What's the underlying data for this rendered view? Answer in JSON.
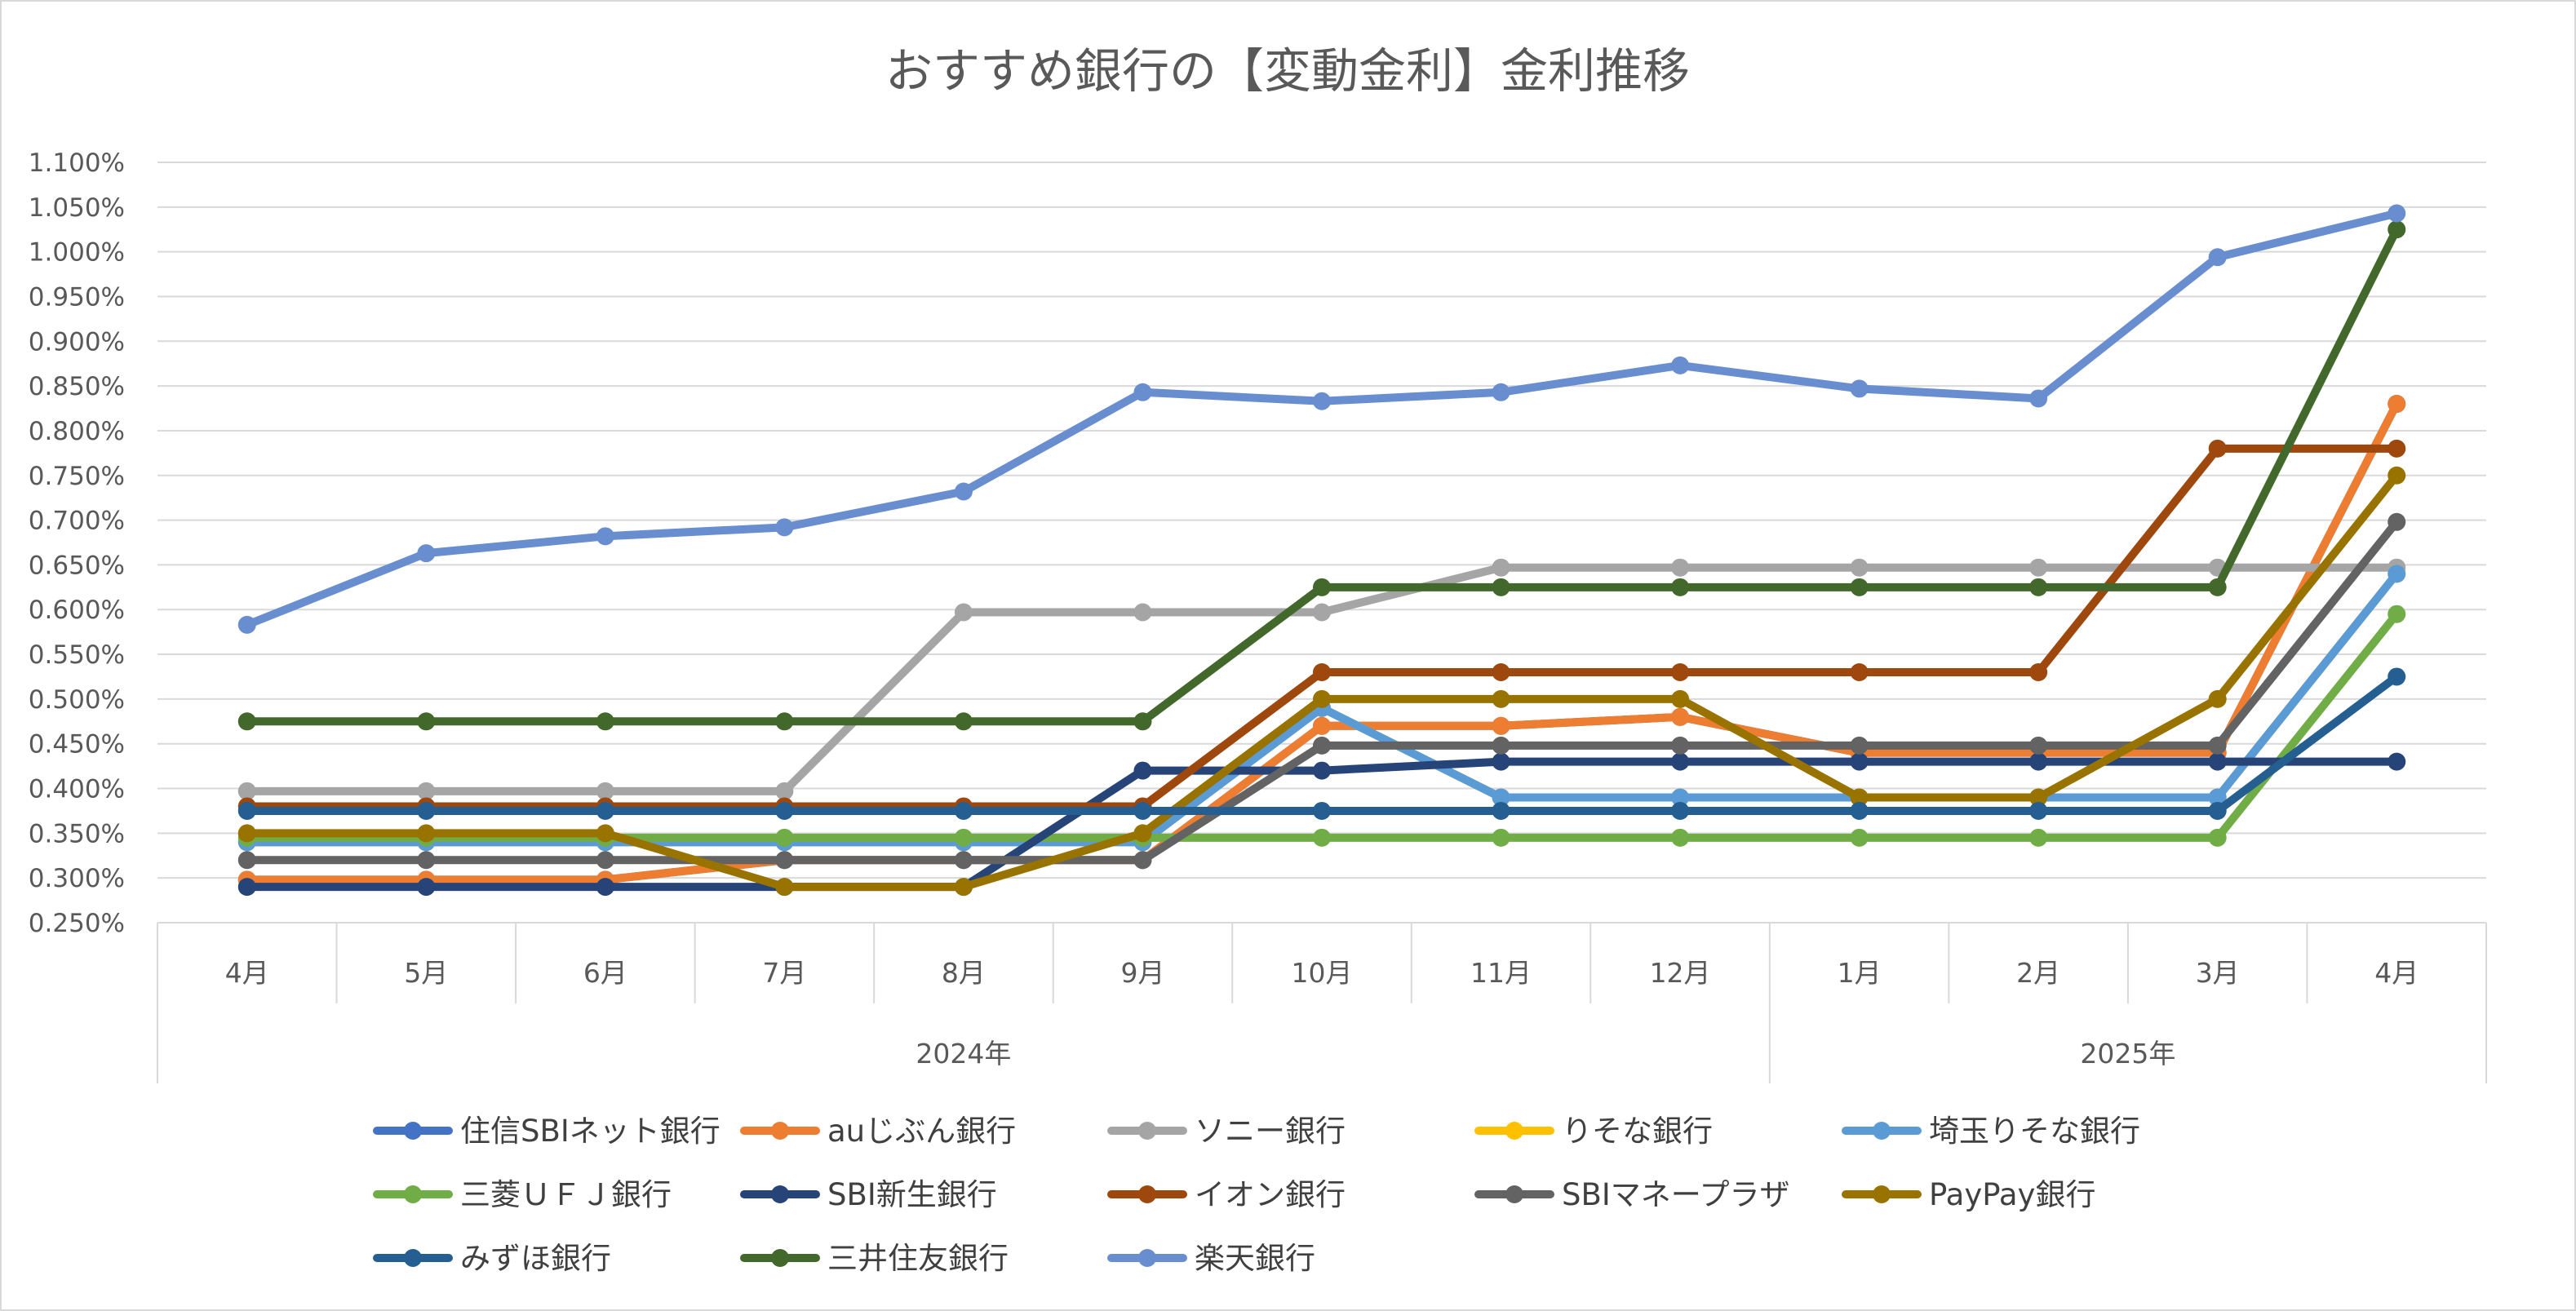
{
  "chart_data": {
    "type": "line",
    "title": "おすすめ銀行の【変動金利】金利推移",
    "ylim": [
      0.25,
      1.1
    ],
    "y_ticks": [
      "1.100%",
      "1.050%",
      "1.000%",
      "0.950%",
      "0.900%",
      "0.850%",
      "0.800%",
      "0.750%",
      "0.700%",
      "0.650%",
      "0.600%",
      "0.550%",
      "0.500%",
      "0.450%",
      "0.400%",
      "0.350%",
      "0.300%",
      "0.250%"
    ],
    "categories": [
      "4月",
      "5月",
      "6月",
      "7月",
      "8月",
      "9月",
      "10月",
      "11月",
      "12月",
      "1月",
      "2月",
      "3月",
      "4月"
    ],
    "year_groups": [
      {
        "label": "2024年",
        "count": 9
      },
      {
        "label": "2025年",
        "count": 4
      }
    ],
    "grid": true,
    "legend_position": "bottom",
    "series": [
      {
        "name": "住信SBIネット銀行",
        "color": "#4472C4",
        "values": [
          0.298,
          0.298,
          0.298,
          0.32,
          0.32,
          0.32,
          0.47,
          0.47,
          0.48,
          0.44,
          0.44,
          0.44,
          0.83
        ]
      },
      {
        "name": "auじぶん銀行",
        "color": "#ED7D31",
        "values": [
          0.298,
          0.298,
          0.298,
          0.32,
          0.32,
          0.32,
          0.47,
          0.47,
          0.48,
          0.44,
          0.44,
          0.44,
          0.83
        ]
      },
      {
        "name": "ソニー銀行",
        "color": "#A5A5A5",
        "values": [
          0.397,
          0.397,
          0.397,
          0.397,
          0.597,
          0.597,
          0.597,
          0.647,
          0.647,
          0.647,
          0.647,
          0.647,
          0.647
        ]
      },
      {
        "name": "りそな銀行",
        "color": "#FFC000",
        "values": [
          0.34,
          0.34,
          0.34,
          0.34,
          0.34,
          0.34,
          0.49,
          0.39,
          0.39,
          0.39,
          0.39,
          0.39,
          0.64
        ]
      },
      {
        "name": "埼玉りそな銀行",
        "color": "#5B9BD5",
        "values": [
          0.34,
          0.34,
          0.34,
          0.34,
          0.34,
          0.34,
          0.49,
          0.39,
          0.39,
          0.39,
          0.39,
          0.39,
          0.64
        ]
      },
      {
        "name": "三菱ＵＦＪ銀行",
        "color": "#70AD47",
        "values": [
          0.345,
          0.345,
          0.345,
          0.345,
          0.345,
          0.345,
          0.345,
          0.345,
          0.345,
          0.345,
          0.345,
          0.345,
          0.595
        ]
      },
      {
        "name": "SBI新生銀行",
        "color": "#264478",
        "values": [
          0.29,
          0.29,
          0.29,
          0.29,
          0.29,
          0.42,
          0.42,
          0.43,
          0.43,
          0.43,
          0.43,
          0.43,
          0.43
        ]
      },
      {
        "name": "イオン銀行",
        "color": "#9E480E",
        "values": [
          0.38,
          0.38,
          0.38,
          0.38,
          0.38,
          0.38,
          0.53,
          0.53,
          0.53,
          0.53,
          0.53,
          0.78,
          0.78
        ]
      },
      {
        "name": "SBIマネープラザ",
        "color": "#636363",
        "values": [
          0.32,
          0.32,
          0.32,
          0.32,
          0.32,
          0.32,
          0.448,
          0.448,
          0.448,
          0.448,
          0.448,
          0.448,
          0.698
        ]
      },
      {
        "name": "PayPay銀行",
        "color": "#997300",
        "values": [
          0.35,
          0.35,
          0.35,
          0.29,
          0.29,
          0.35,
          0.5,
          0.5,
          0.5,
          0.39,
          0.39,
          0.5,
          0.75
        ]
      },
      {
        "name": "みずほ銀行",
        "color": "#255E91",
        "values": [
          0.375,
          0.375,
          0.375,
          0.375,
          0.375,
          0.375,
          0.375,
          0.375,
          0.375,
          0.375,
          0.375,
          0.375,
          0.525
        ]
      },
      {
        "name": "三井住友銀行",
        "color": "#43682B",
        "values": [
          0.475,
          0.475,
          0.475,
          0.475,
          0.475,
          0.475,
          0.625,
          0.625,
          0.625,
          0.625,
          0.625,
          0.625,
          1.025
        ]
      },
      {
        "name": "楽天銀行",
        "color": "#698ED0",
        "values": [
          0.583,
          0.663,
          0.682,
          0.692,
          0.732,
          0.843,
          0.833,
          0.843,
          0.873,
          0.847,
          0.836,
          0.994,
          1.043
        ]
      }
    ]
  }
}
